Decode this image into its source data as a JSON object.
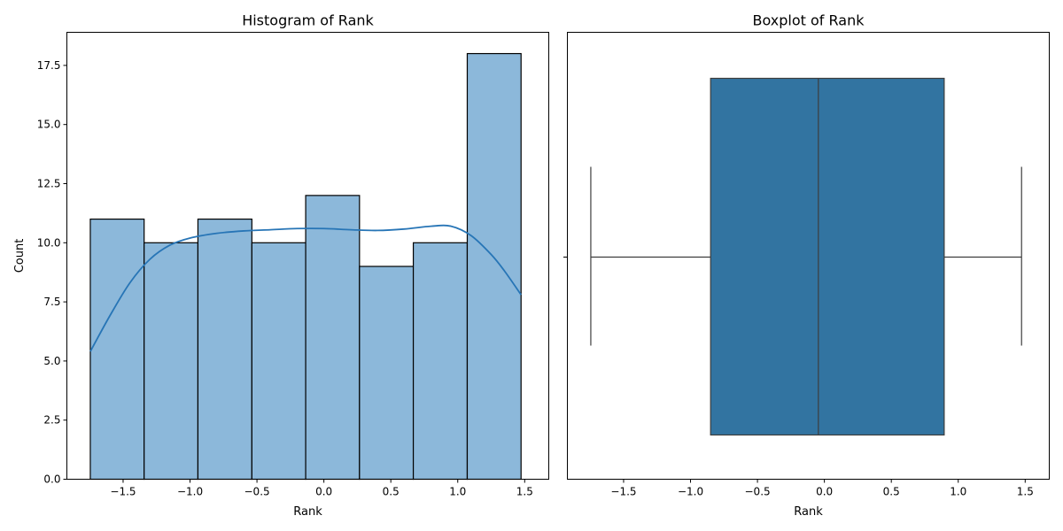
{
  "chart_data": [
    {
      "type": "histogram",
      "title": "Histogram of Rank",
      "xlabel": "Rank",
      "ylabel": "Count",
      "xlim": [
        -1.92,
        1.68
      ],
      "ylim": [
        0,
        18.9
      ],
      "xticks": [
        -1.5,
        -1.0,
        -0.5,
        0.0,
        0.5,
        1.0,
        1.5
      ],
      "xtick_labels": [
        "−1.5",
        "−1.0",
        "−0.5",
        "0.0",
        "0.5",
        "1.0",
        "1.5"
      ],
      "yticks": [
        0,
        2.5,
        5.0,
        7.5,
        10.0,
        12.5,
        15.0,
        17.5
      ],
      "ytick_labels": [
        "0.0",
        "2.5",
        "5.0",
        "7.5",
        "10.0",
        "12.5",
        "15.0",
        "17.5"
      ],
      "bin_edges": [
        -1.745,
        -1.343,
        -0.941,
        -0.538,
        -0.136,
        0.266,
        0.668,
        1.071,
        1.473
      ],
      "counts": [
        11,
        10,
        11,
        10,
        12,
        9,
        10,
        18
      ],
      "kde": {
        "x": [
          -1.745,
          -1.6,
          -1.45,
          -1.3,
          -1.15,
          -1.0,
          -0.8,
          -0.6,
          -0.4,
          -0.2,
          0.0,
          0.2,
          0.4,
          0.6,
          0.8,
          0.95,
          1.1,
          1.25,
          1.35,
          1.473
        ],
        "y": [
          5.4,
          6.9,
          8.3,
          9.3,
          9.9,
          10.2,
          10.4,
          10.5,
          10.55,
          10.6,
          10.6,
          10.55,
          10.52,
          10.58,
          10.7,
          10.7,
          10.3,
          9.5,
          8.8,
          7.8
        ]
      },
      "colors": {
        "bar_fill": "#8cb8da",
        "bar_edge": "#000000",
        "kde_line": "#2775b6"
      }
    },
    {
      "type": "boxplot",
      "title": "Boxplot of Rank",
      "xlabel": "Rank",
      "ylabel": "",
      "xlim": [
        -1.92,
        1.68
      ],
      "xticks": [
        -1.5,
        -1.0,
        -0.5,
        0.0,
        0.5,
        1.0,
        1.5
      ],
      "xtick_labels": [
        "−1.5",
        "−1.0",
        "−0.5",
        "0.0",
        "0.5",
        "1.0",
        "1.5"
      ],
      "stats": {
        "whisker_low": -1.745,
        "q1": -0.85,
        "median": -0.045,
        "q3": 0.895,
        "whisker_high": 1.473
      },
      "colors": {
        "box_fill": "#3274a1",
        "line": "#3d3d3d"
      }
    }
  ]
}
